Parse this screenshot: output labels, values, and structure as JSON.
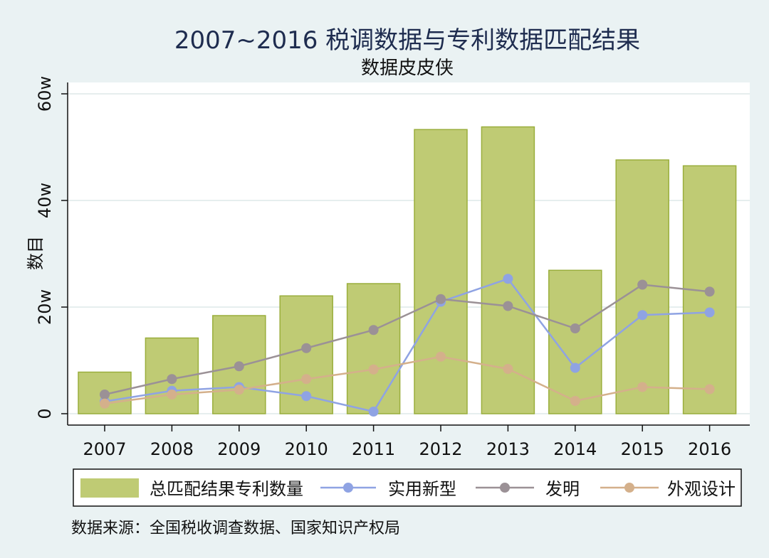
{
  "chart_data": {
    "type": "bar",
    "title": "2007~2016 税调数据与专利数据匹配结果",
    "subtitle": "数据皮皮侠",
    "ylabel": "数目",
    "xlabel": "",
    "categories": [
      "2007",
      "2008",
      "2009",
      "2010",
      "2011",
      "2012",
      "2013",
      "2014",
      "2015",
      "2016"
    ],
    "ylim": [
      0,
      600000
    ],
    "yticks": [
      0,
      200000,
      400000,
      600000
    ],
    "ytick_labels": [
      "0",
      "20w",
      "40w",
      "60w"
    ],
    "grid": true,
    "legend_position": "bottom",
    "bar_series": {
      "name": "总匹配结果专利数量",
      "color": "#bfcb74",
      "edge_color": "#9aae3c",
      "values": [
        78000,
        142000,
        184000,
        221000,
        244000,
        533000,
        538000,
        269000,
        476000,
        465000
      ]
    },
    "line_series": [
      {
        "name": "实用新型",
        "color": "#8fa3e3",
        "values": [
          23000,
          43000,
          50000,
          33000,
          4000,
          210000,
          253000,
          86000,
          185000,
          190000
        ]
      },
      {
        "name": "发明",
        "color": "#9b9196",
        "values": [
          36000,
          65000,
          89000,
          123000,
          157000,
          215000,
          202000,
          160000,
          242000,
          229000
        ]
      },
      {
        "name": "外观设计",
        "color": "#d4b08b",
        "values": [
          19000,
          36000,
          45000,
          65000,
          83000,
          107000,
          84000,
          24000,
          50000,
          46000
        ]
      }
    ],
    "source": "数据来源：全国税收调查数据、国家知识产权局"
  }
}
